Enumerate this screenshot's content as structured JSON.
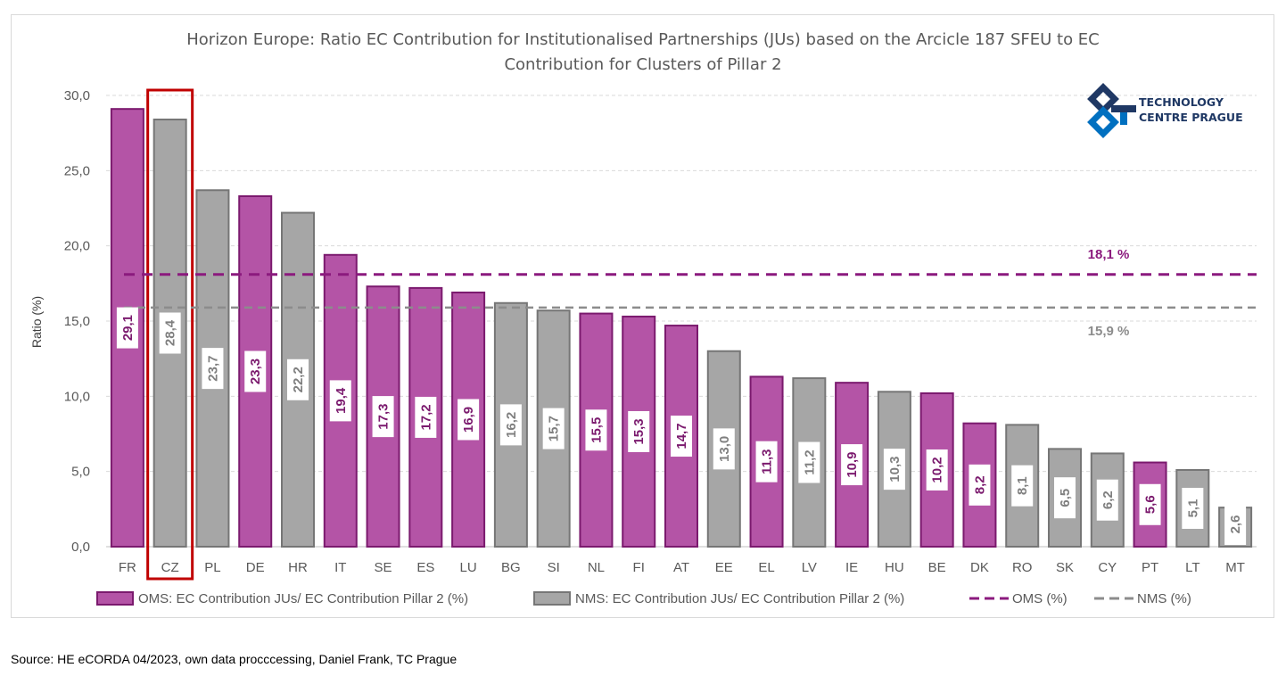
{
  "chart_data": {
    "type": "bar",
    "title_lines": [
      "Horizon Europe: Ratio EC Contribution for Institutionalised Partnerships (JUs)  based on the Arcicle 187 SFEU to EC",
      "Contribution for Clusters of Pillar 2"
    ],
    "ylabel": "Ratio (%)",
    "ylim": [
      0,
      30
    ],
    "yticks": [
      0,
      5,
      10,
      15,
      20,
      25,
      30
    ],
    "ytick_labels": [
      "0,0",
      "5,0",
      "10,0",
      "15,0",
      "20,0",
      "25,0",
      "30,0"
    ],
    "grid": true,
    "categories": [
      "FR",
      "CZ",
      "PL",
      "DE",
      "HR",
      "IT",
      "SE",
      "ES",
      "LU",
      "BG",
      "SI",
      "NL",
      "FI",
      "AT",
      "EE",
      "EL",
      "LV",
      "IE",
      "HU",
      "BE",
      "DK",
      "RO",
      "SK",
      "CY",
      "PT",
      "LT",
      "MT"
    ],
    "values": [
      29.1,
      28.4,
      23.7,
      23.3,
      22.2,
      19.4,
      17.3,
      17.2,
      16.9,
      16.2,
      15.7,
      15.5,
      15.3,
      14.7,
      13.0,
      11.3,
      11.2,
      10.9,
      10.3,
      10.2,
      8.2,
      8.1,
      6.5,
      6.2,
      5.6,
      5.1,
      2.6
    ],
    "value_labels": [
      "29,1",
      "28,4",
      "23,7",
      "23,3",
      "22,2",
      "19,4",
      "17,3",
      "17,2",
      "16,9",
      "16,2",
      "15,7",
      "15,5",
      "15,3",
      "14,7",
      "13,0",
      "11,3",
      "11,2",
      "10,9",
      "10,3",
      "10,2",
      "8,2",
      "8,1",
      "6,5",
      "6,2",
      "5,6",
      "5,1",
      "2,6"
    ],
    "groups": [
      "OMS",
      "NMS",
      "NMS",
      "OMS",
      "NMS",
      "OMS",
      "OMS",
      "OMS",
      "OMS",
      "NMS",
      "NMS",
      "OMS",
      "OMS",
      "OMS",
      "NMS",
      "OMS",
      "NMS",
      "OMS",
      "NMS",
      "OMS",
      "OMS",
      "NMS",
      "NMS",
      "NMS",
      "OMS",
      "NMS",
      "NMS"
    ],
    "series": [
      {
        "name": "OMS: EC Contribution JUs/ EC Contribution Pillar 2 (%)",
        "group": "OMS",
        "color": "#b454a6",
        "border": "#7b1a6e"
      },
      {
        "name": "NMS: EC Contribution JUs/ EC Contribution Pillar 2 (%)",
        "group": "NMS",
        "color": "#a6a6a6",
        "border": "#767676"
      }
    ],
    "reference_lines": [
      {
        "name": "OMS (%)",
        "value": 18.1,
        "label": "18,1 %",
        "color": "#8b1a7e"
      },
      {
        "name": "NMS (%)",
        "value": 15.9,
        "label": "15,9 %",
        "color": "#8c8c8c"
      }
    ],
    "highlighted_category": "CZ",
    "highlight_color": "#c00000",
    "legend_position": "bottom"
  },
  "logo": {
    "line1": "TECHNOLOGY",
    "line2": "CENTRE PRAGUE",
    "color": "#1f3864",
    "accent": "#0070c0"
  },
  "source": "Source: HE eCORDA 04/2023, own data procccessing, Daniel Frank, TC Prague"
}
